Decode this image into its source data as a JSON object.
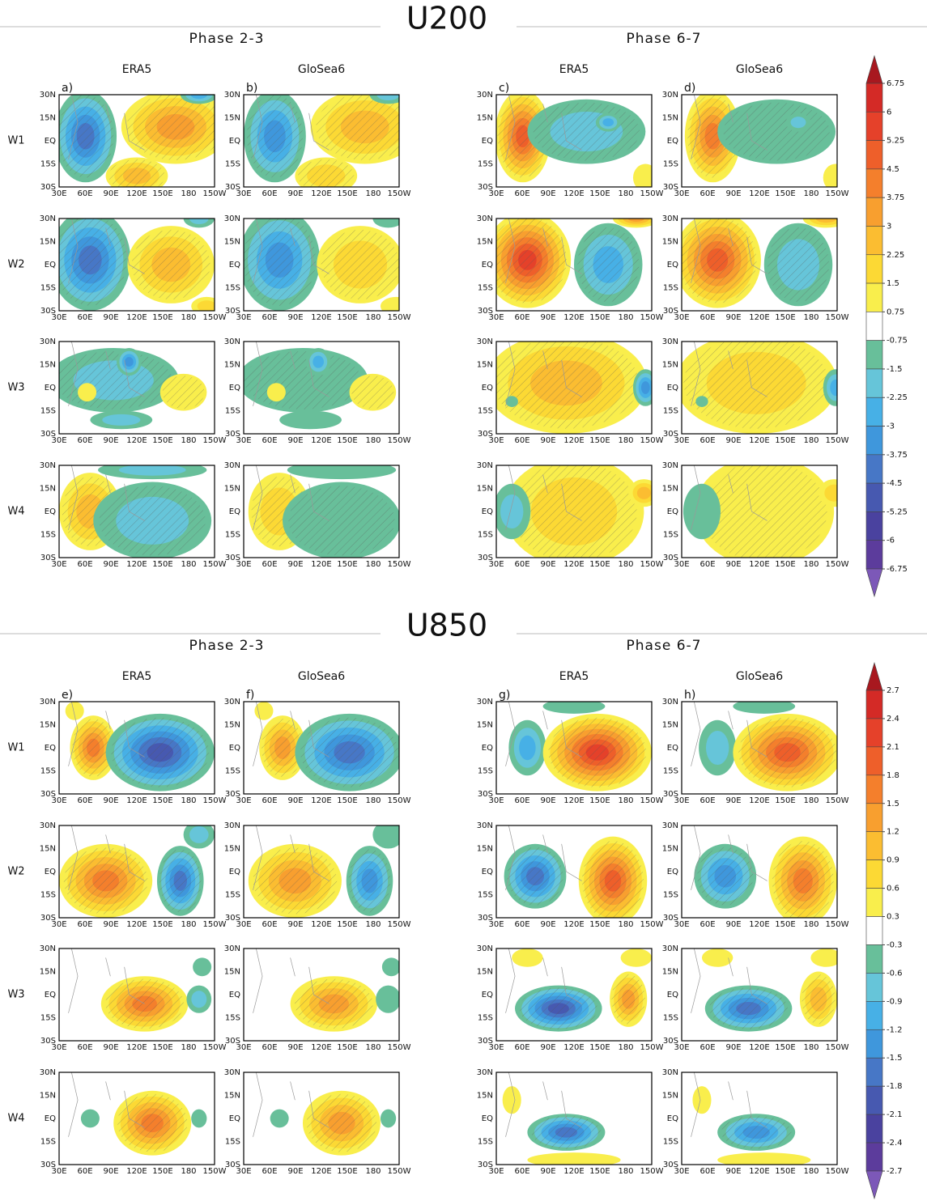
{
  "figure": {
    "rows": [
      "W1",
      "W2",
      "W3",
      "W4"
    ],
    "lat_ticks": [
      "30N",
      "15N",
      "EQ",
      "15S",
      "30S"
    ],
    "lon_ticks": [
      "30E",
      "60E",
      "90E",
      "120E",
      "150E",
      "180",
      "150W"
    ],
    "palette": [
      "#a8181f",
      "#d42a26",
      "#e5412a",
      "#ee5f2a",
      "#f47f2c",
      "#f89f2f",
      "#fbbd31",
      "#fcd934",
      "#f9ee4c",
      "#ffffff",
      "#68bf9a",
      "#66c5d9",
      "#47b0e6",
      "#3f97dc",
      "#4777c6",
      "#4759b0",
      "#4a429f",
      "#5c3c9c",
      "#7c58b8"
    ],
    "sections": [
      {
        "title": "U200",
        "phases": [
          {
            "title": "Phase 2-3",
            "columns": [
              {
                "name": "ERA5",
                "letter": "a)"
              },
              {
                "name": "GloSea6",
                "letter": "b)"
              }
            ]
          },
          {
            "title": "Phase 6-7",
            "columns": [
              {
                "name": "ERA5",
                "letter": "c)"
              },
              {
                "name": "GloSea6",
                "letter": "d)"
              }
            ]
          }
        ],
        "colorbar": [
          6.75,
          6,
          5.25,
          4.5,
          3.75,
          3,
          2.25,
          1.5,
          0.75,
          -0.75,
          -1.5,
          -2.25,
          -3,
          -3.75,
          -4.5,
          -5.25,
          -6,
          -6.75
        ]
      },
      {
        "title": "U850",
        "phases": [
          {
            "title": "Phase 2-3",
            "columns": [
              {
                "name": "ERA5",
                "letter": "e)"
              },
              {
                "name": "GloSea6",
                "letter": "f)"
              }
            ]
          },
          {
            "title": "Phase 6-7",
            "columns": [
              {
                "name": "ERA5",
                "letter": "g)"
              },
              {
                "name": "GloSea6",
                "letter": "h)"
              }
            ]
          }
        ],
        "colorbar": [
          2.7,
          2.4,
          2.1,
          1.8,
          1.5,
          1.2,
          0.9,
          0.6,
          0.3,
          -0.3,
          -0.6,
          -0.9,
          -1.2,
          -1.5,
          -1.8,
          -2.1,
          -2.4,
          -2.7
        ]
      }
    ]
  }
}
